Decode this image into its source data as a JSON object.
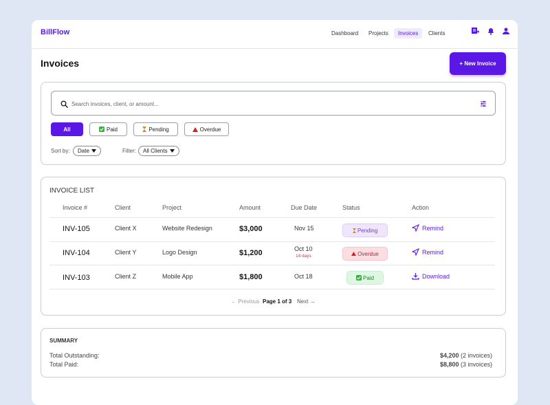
{
  "header": {
    "brand": "BillFlow",
    "nav": [
      "Dashboard",
      "Projects",
      "Invoices",
      "Clients"
    ]
  },
  "page": {
    "title": "Invoices",
    "new_button": "+ New Invoice"
  },
  "filters": {
    "search_placeholder": "Search invoices, client, or amount...",
    "chips": [
      "All",
      "Paid",
      "Pending",
      "Overdue"
    ],
    "sort_label": "Sort by:",
    "sort_value": "Date",
    "filter_label": "Filter:",
    "filter_value": "All Clients"
  },
  "invoice_list": {
    "heading": "INVOICE LIST",
    "columns": [
      "Invoice #",
      "Client",
      "Project",
      "Amount",
      "Due Date",
      "Status",
      "Action"
    ],
    "rows": [
      {
        "id": "INV-105",
        "client": "Client X",
        "project": "Website Redesign",
        "amount": "$3,000",
        "due": "Nov 15",
        "status": "Pending",
        "action": "Remind"
      },
      {
        "id": "INV-104",
        "client": "Client Y",
        "project": "Logo Design",
        "amount": "$1,200",
        "due": "Oct 10",
        "due_note": "14 days",
        "status": "Overdue",
        "action": "Remind"
      },
      {
        "id": "INV-103",
        "client": "Client Z",
        "project": "Mobile App",
        "amount": "$1,800",
        "due": "Oct 18",
        "status": "Paid",
        "action": "Download"
      }
    ],
    "pagination": {
      "previous": "← Previous",
      "page": "Page 1 of 3",
      "next": "Next →"
    }
  },
  "summary": {
    "heading": "SUMMARY",
    "rows": [
      {
        "label": "Total Outstanding:",
        "amount": "$4,200",
        "note": "(2 invoices)"
      },
      {
        "label": "Total Paid:",
        "amount": "$8,800",
        "note": "(3 invoices)"
      }
    ]
  }
}
